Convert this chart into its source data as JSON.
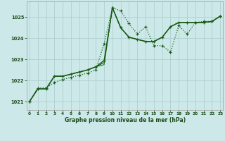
{
  "title": "Graphe pression niveau de la mer (hPa)",
  "bg_color": "#cce8e8",
  "grid_color": "#aacccc",
  "line_color_dark": "#1a5c1a",
  "line_color_mid": "#2d7a2d",
  "xlim": [
    -0.3,
    23.3
  ],
  "ylim": [
    1020.6,
    1025.75
  ],
  "yticks": [
    1021,
    1022,
    1023,
    1024,
    1025
  ],
  "xticks": [
    0,
    1,
    2,
    3,
    4,
    5,
    6,
    7,
    8,
    9,
    10,
    11,
    12,
    13,
    14,
    15,
    16,
    17,
    18,
    19,
    20,
    21,
    22,
    23
  ],
  "series_dotted": [
    1021.0,
    1021.65,
    1021.65,
    1021.9,
    1022.05,
    1022.15,
    1022.25,
    1022.35,
    1022.5,
    1023.75,
    1025.45,
    1025.3,
    1024.7,
    1024.2,
    1024.55,
    1023.65,
    1023.65,
    1023.35,
    1024.6,
    1024.2,
    1024.75,
    1024.8,
    1024.8,
    1025.05
  ],
  "series_solid1": [
    1021.0,
    1021.6,
    1021.6,
    1022.2,
    1022.2,
    1022.3,
    1022.4,
    1022.5,
    1022.65,
    1022.95,
    1025.45,
    1024.5,
    1024.05,
    1023.95,
    1023.85,
    1023.85,
    1024.05,
    1024.55,
    1024.75,
    1024.75,
    1024.75,
    1024.75,
    1024.8,
    1025.05
  ],
  "series_solid2": [
    1021.0,
    1021.6,
    1021.6,
    1022.2,
    1022.2,
    1022.3,
    1022.4,
    1022.5,
    1022.65,
    1022.85,
    1025.45,
    1024.5,
    1024.05,
    1023.95,
    1023.85,
    1023.85,
    1024.05,
    1024.55,
    1024.75,
    1024.75,
    1024.75,
    1024.75,
    1024.8,
    1025.05
  ],
  "series_solid3": [
    1021.0,
    1021.6,
    1021.6,
    1022.2,
    1022.2,
    1022.3,
    1022.4,
    1022.5,
    1022.65,
    1022.75,
    1025.45,
    1024.5,
    1024.05,
    1023.95,
    1023.85,
    1023.85,
    1024.05,
    1024.55,
    1024.75,
    1024.75,
    1024.75,
    1024.75,
    1024.8,
    1025.05
  ]
}
